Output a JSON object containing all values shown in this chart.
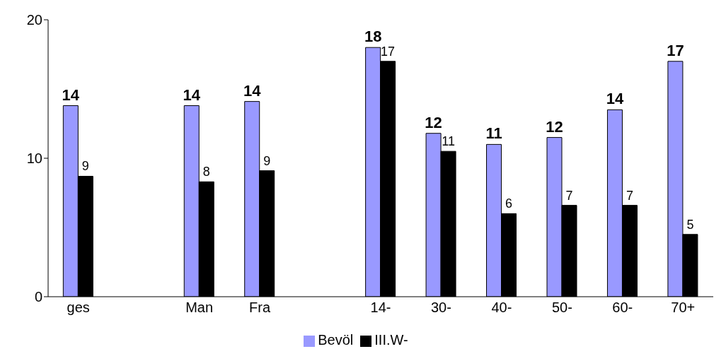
{
  "chart_data": {
    "type": "bar",
    "categories": [
      "ges",
      null,
      "Man",
      "Fra",
      null,
      "14-",
      "30-",
      "40-",
      "50-",
      "60-",
      "70+"
    ],
    "series": [
      {
        "name": "Bevöl",
        "color": "#9999ff",
        "values": [
          13.8,
          null,
          13.8,
          14.1,
          null,
          18,
          11.8,
          11,
          11.5,
          13.5,
          17
        ],
        "value_labels": [
          "14",
          null,
          "14",
          "14",
          null,
          "18",
          "12",
          "11",
          "12",
          "14",
          "17"
        ]
      },
      {
        "name": "III.W-",
        "color": "#000000",
        "values": [
          8.7,
          null,
          8.3,
          9.1,
          null,
          17,
          10.5,
          6,
          6.6,
          6.6,
          4.5
        ],
        "value_labels": [
          "9",
          null,
          "8",
          "9",
          null,
          "17",
          "11",
          "6",
          "7",
          "7",
          "5"
        ]
      }
    ],
    "ylim": [
      0,
      20
    ],
    "yticks": [
      0,
      10,
      20
    ],
    "grid": false,
    "legend": "bottom"
  }
}
